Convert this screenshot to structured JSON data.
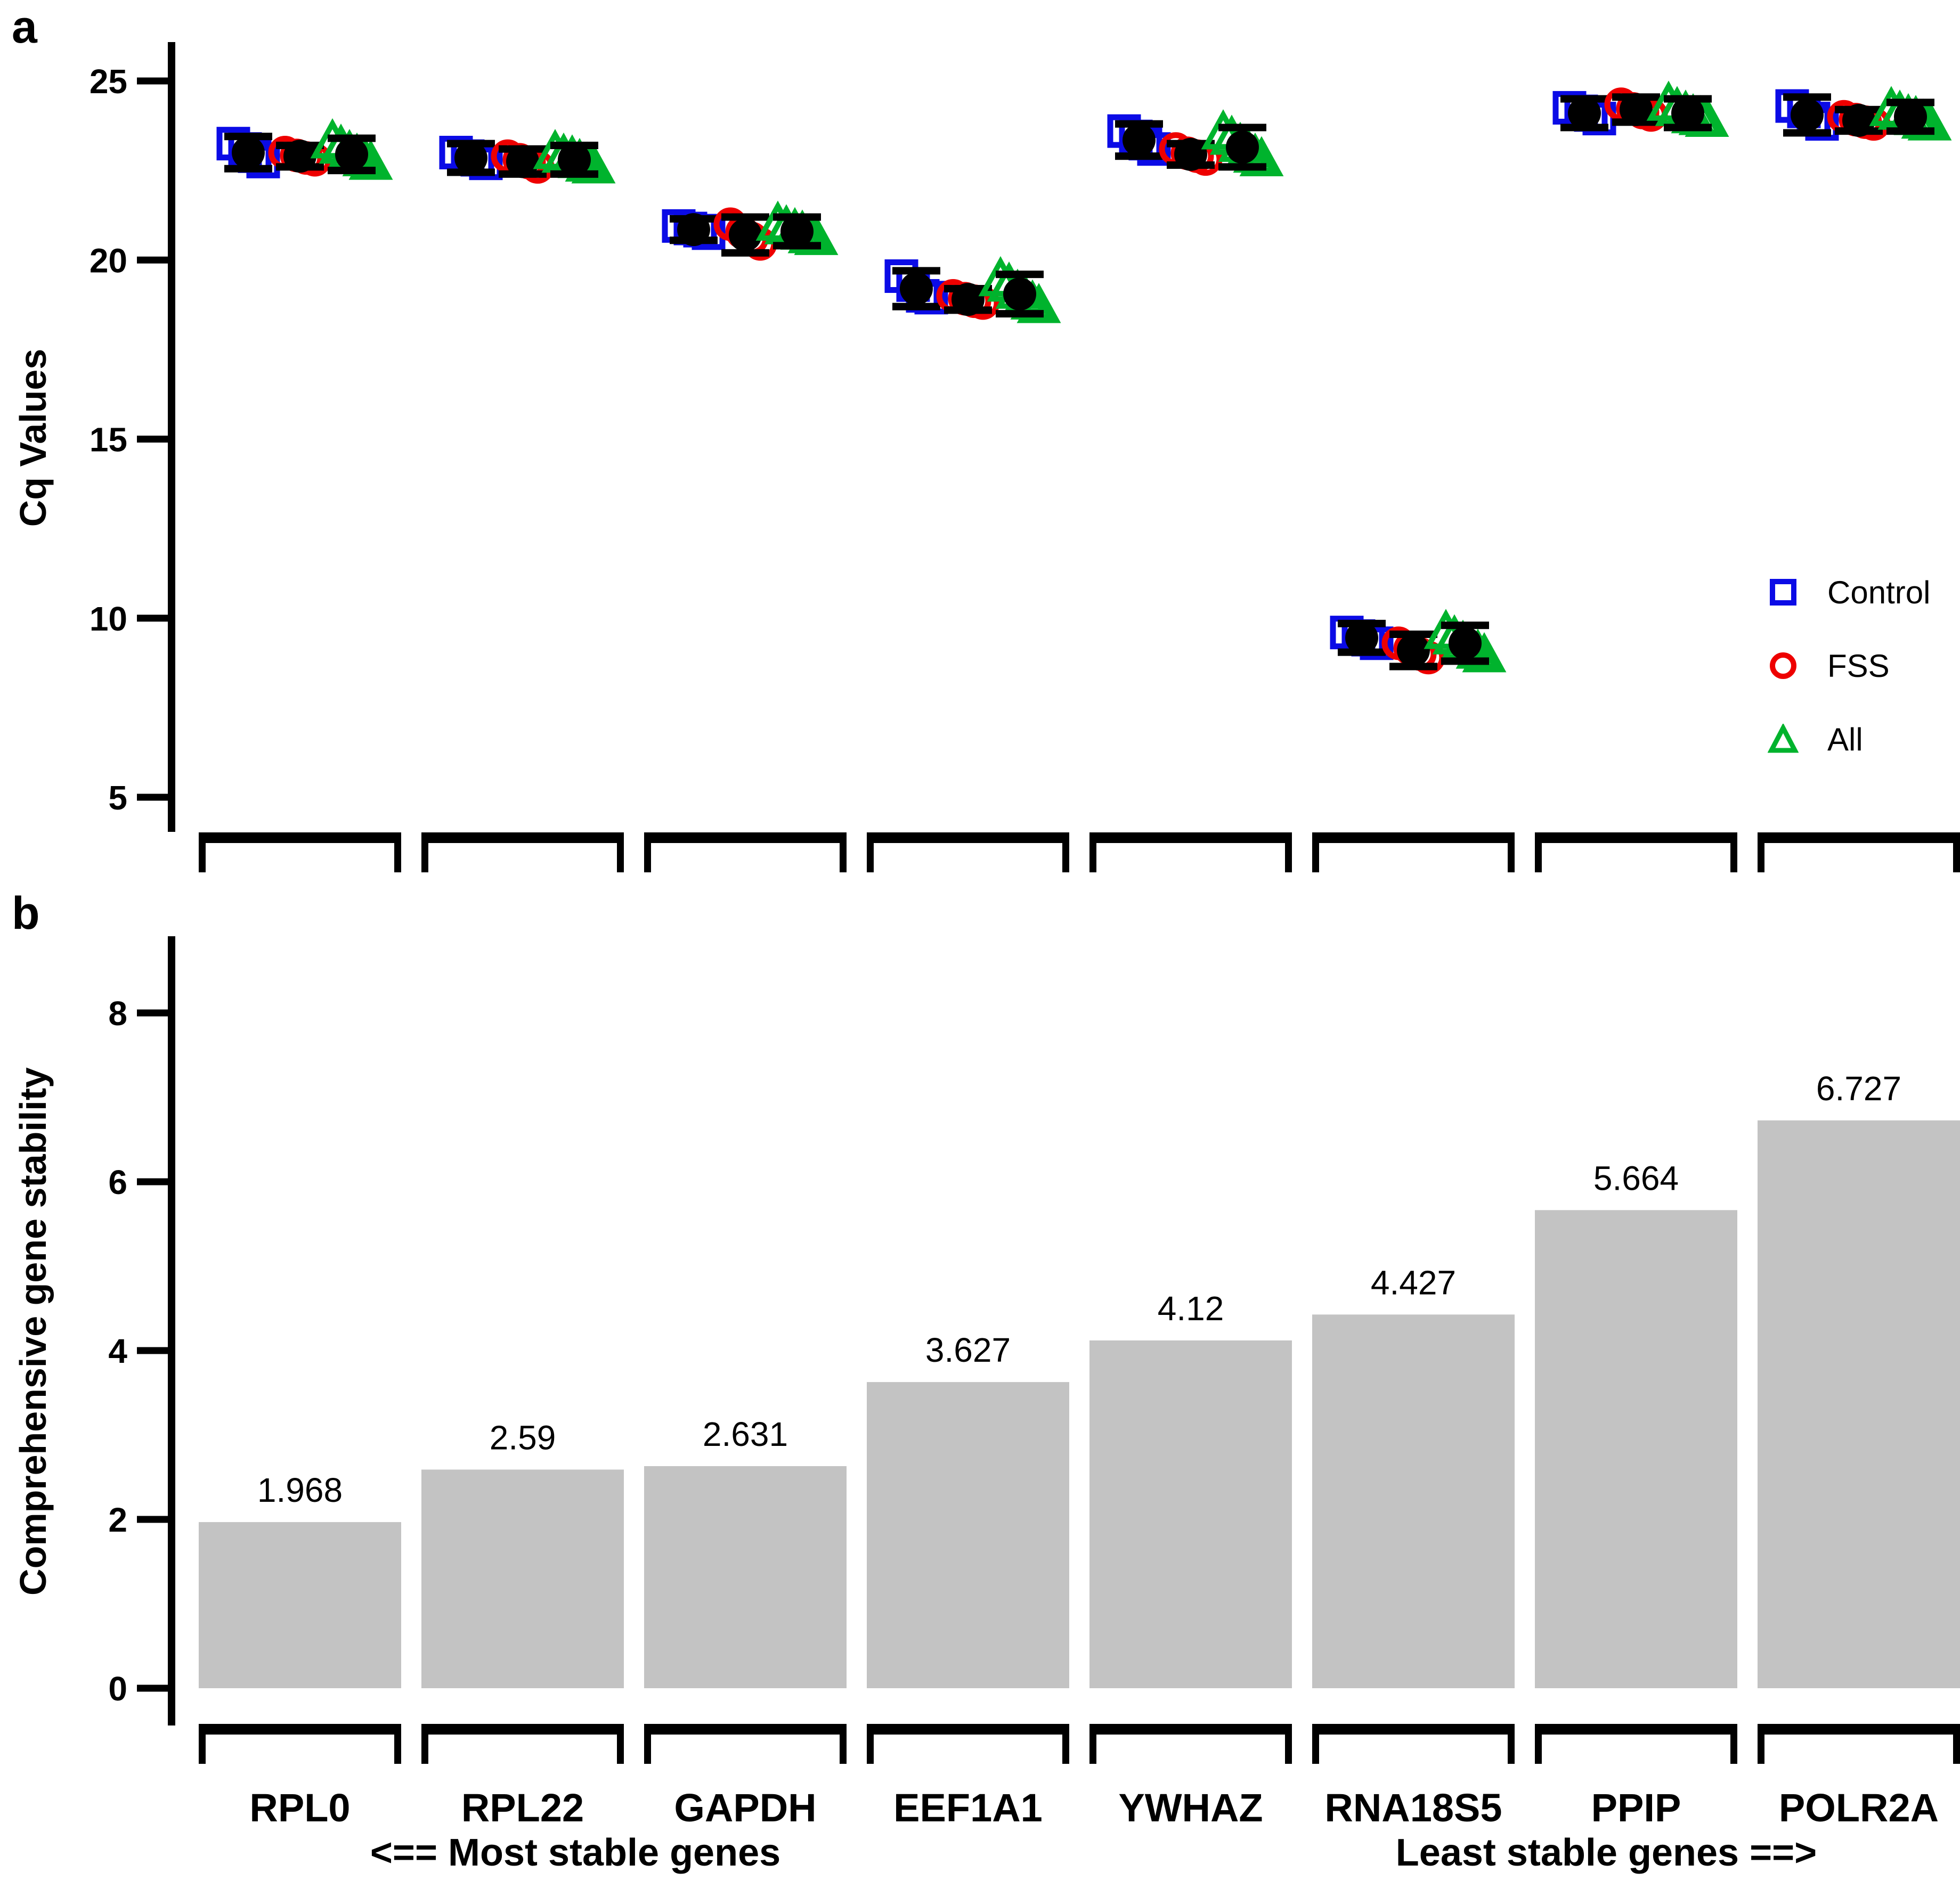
{
  "panels": {
    "a_label": "a",
    "b_label": "b"
  },
  "colors": {
    "control": "#0B0BE6",
    "fss": "#EE0000",
    "all": "#00B32D",
    "bar": "#C3C3C3",
    "axis": "#000000",
    "mean": "#000000"
  },
  "legend": {
    "items": [
      {
        "label": "Control",
        "marker": "square",
        "color_key": "control"
      },
      {
        "label": "FSS",
        "marker": "circle",
        "color_key": "fss"
      },
      {
        "label": "All",
        "marker": "triangle",
        "color_key": "all"
      }
    ]
  },
  "annotations": {
    "most_stable": "<== Most stable genes",
    "least_stable": "Least stable genes ==>"
  },
  "chart_data": [
    {
      "type": "scatter",
      "panel": "a",
      "ylabel": "Cq Values",
      "yticks": [
        5,
        10,
        15,
        20,
        25
      ],
      "ylim": [
        3.5,
        26.1
      ],
      "grid": false,
      "legend_position": "right-middle",
      "categories": [
        "RPL0",
        "RPL22",
        "GAPDH",
        "EEF1A1",
        "YWHAZ",
        "RNA18S5",
        "PPIP",
        "POLR2A"
      ],
      "series": [
        {
          "name": "Control",
          "marker": "square",
          "color_key": "control",
          "means": [
            23.0,
            22.85,
            20.85,
            19.2,
            23.35,
            9.45,
            24.1,
            24.05
          ],
          "sem": [
            0.45,
            0.4,
            0.3,
            0.5,
            0.45,
            0.4,
            0.4,
            0.5
          ],
          "points": [
            [
              23.25,
              23.1,
              22.9,
              22.75
            ],
            [
              23.0,
              22.9,
              22.8,
              22.7
            ],
            [
              20.95,
              20.88,
              20.82,
              20.75
            ],
            [
              19.55,
              19.3,
              19.0,
              18.95
            ],
            [
              23.6,
              23.45,
              23.25,
              23.1
            ],
            [
              9.6,
              9.5,
              9.4,
              9.3
            ],
            [
              24.25,
              24.15,
              24.05,
              23.95
            ],
            [
              24.3,
              24.15,
              23.95,
              23.8
            ]
          ]
        },
        {
          "name": "FSS",
          "marker": "circle",
          "color_key": "fss",
          "means": [
            22.9,
            22.75,
            20.7,
            18.9,
            22.95,
            9.1,
            24.2,
            23.9
          ],
          "sem": [
            0.3,
            0.35,
            0.5,
            0.3,
            0.3,
            0.45,
            0.35,
            0.3
          ],
          "points": [
            [
              23.0,
              22.92,
              22.85,
              22.8
            ],
            [
              22.9,
              22.8,
              22.72,
              22.6
            ],
            [
              21.0,
              20.78,
              20.6,
              20.45
            ],
            [
              19.0,
              18.92,
              18.85,
              18.8
            ],
            [
              23.1,
              22.98,
              22.9,
              22.82
            ],
            [
              9.3,
              9.15,
              9.0,
              8.9
            ],
            [
              24.35,
              24.22,
              24.12,
              24.05
            ],
            [
              24.0,
              23.92,
              23.85,
              23.8
            ]
          ]
        },
        {
          "name": "All",
          "marker": "triangle",
          "color_key": "all",
          "means": [
            22.95,
            22.8,
            20.8,
            19.05,
            23.15,
            9.3,
            24.1,
            24.0
          ],
          "sem": [
            0.45,
            0.4,
            0.4,
            0.55,
            0.55,
            0.5,
            0.4,
            0.4
          ],
          "points": [
            [
              23.3,
              23.15,
              23.0,
              22.9,
              22.8,
              22.7
            ],
            [
              23.0,
              22.9,
              22.85,
              22.75,
              22.65,
              22.6
            ],
            [
              21.0,
              20.9,
              20.82,
              20.75,
              20.65,
              20.6
            ],
            [
              19.45,
              19.3,
              19.1,
              18.95,
              18.8,
              18.7
            ],
            [
              23.55,
              23.4,
              23.2,
              23.05,
              22.9,
              22.8
            ],
            [
              9.6,
              9.45,
              9.3,
              9.2,
              9.05,
              8.95
            ],
            [
              24.35,
              24.2,
              24.1,
              24.0,
              23.95,
              23.9
            ],
            [
              24.2,
              24.1,
              24.0,
              23.95,
              23.85,
              23.8
            ]
          ]
        }
      ]
    },
    {
      "type": "bar",
      "panel": "b",
      "ylabel": "Comprehensive gene stability",
      "yticks": [
        0,
        2,
        4,
        6,
        8
      ],
      "ylim": [
        0,
        8.9
      ],
      "grid": false,
      "categories": [
        "RPL0",
        "RPL22",
        "GAPDH",
        "EEF1A1",
        "YWHAZ",
        "RNA18S5",
        "PPIP",
        "POLR2A"
      ],
      "values": [
        1.968,
        2.59,
        2.631,
        3.627,
        4.12,
        4.427,
        5.664,
        6.727
      ],
      "value_labels": [
        "1.968",
        "2.59",
        "2.631",
        "3.627",
        "4.12",
        "4.427",
        "5.664",
        "6.727"
      ]
    }
  ]
}
